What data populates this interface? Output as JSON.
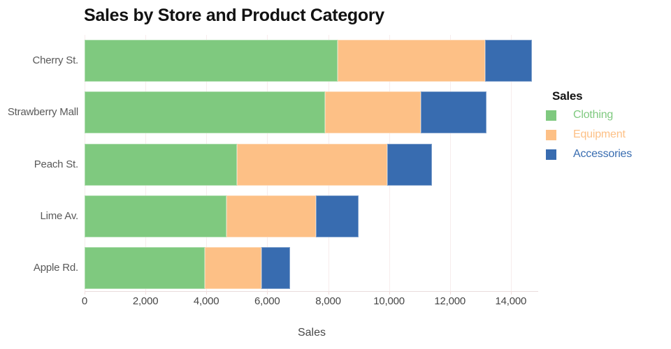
{
  "title": "Sales by Store and Product Category",
  "x_axis": {
    "label": "Sales",
    "tick_labels": [
      "0",
      "2,000",
      "4,000",
      "6,000",
      "8,000",
      "10,000",
      "12,000",
      "14,000"
    ]
  },
  "y_axis": {
    "categories": [
      "Cherry St.",
      "Strawberry Mall",
      "Peach St.",
      "Lime Av.",
      "Apple Rd."
    ]
  },
  "legend": {
    "title": "Sales",
    "items": [
      {
        "label": "Clothing",
        "color": "#7fc97f"
      },
      {
        "label": "Equipment",
        "color": "#fdc086"
      },
      {
        "label": "Accessories",
        "color": "#386cb0"
      }
    ]
  },
  "colors": {
    "clothing": "#7fc97f",
    "equipment": "#fdc086",
    "accessories": "#386cb0",
    "gridline": "#f7ecec",
    "axis_line": "#e9dcdc",
    "tick_text": "#474747",
    "category_text": "#595959",
    "title_text": "#121212",
    "background": "#ffffff"
  },
  "chart_data": {
    "type": "bar",
    "orientation": "horizontal",
    "stacked": true,
    "title": "Sales by Store and Product Category",
    "categories": [
      "Cherry St.",
      "Strawberry Mall",
      "Peach St.",
      "Lime Av.",
      "Apple Rd."
    ],
    "series": [
      {
        "name": "Clothing",
        "color": "#7fc97f",
        "values": [
          8300,
          7900,
          5000,
          4650,
          3950
        ]
      },
      {
        "name": "Equipment",
        "color": "#fdc086",
        "values": [
          4850,
          3150,
          4950,
          2950,
          1850
        ]
      },
      {
        "name": "Accessories",
        "color": "#386cb0",
        "values": [
          1550,
          2150,
          1450,
          1400,
          950
        ]
      }
    ],
    "totals": [
      14700,
      13200,
      11400,
      9000,
      6750
    ],
    "xlabel": "Sales",
    "ylabel": "",
    "x_ticks": [
      0,
      2000,
      4000,
      6000,
      8000,
      10000,
      12000,
      14000
    ],
    "xlim": [
      0,
      14900
    ],
    "grid": true,
    "legend_position": "right"
  }
}
